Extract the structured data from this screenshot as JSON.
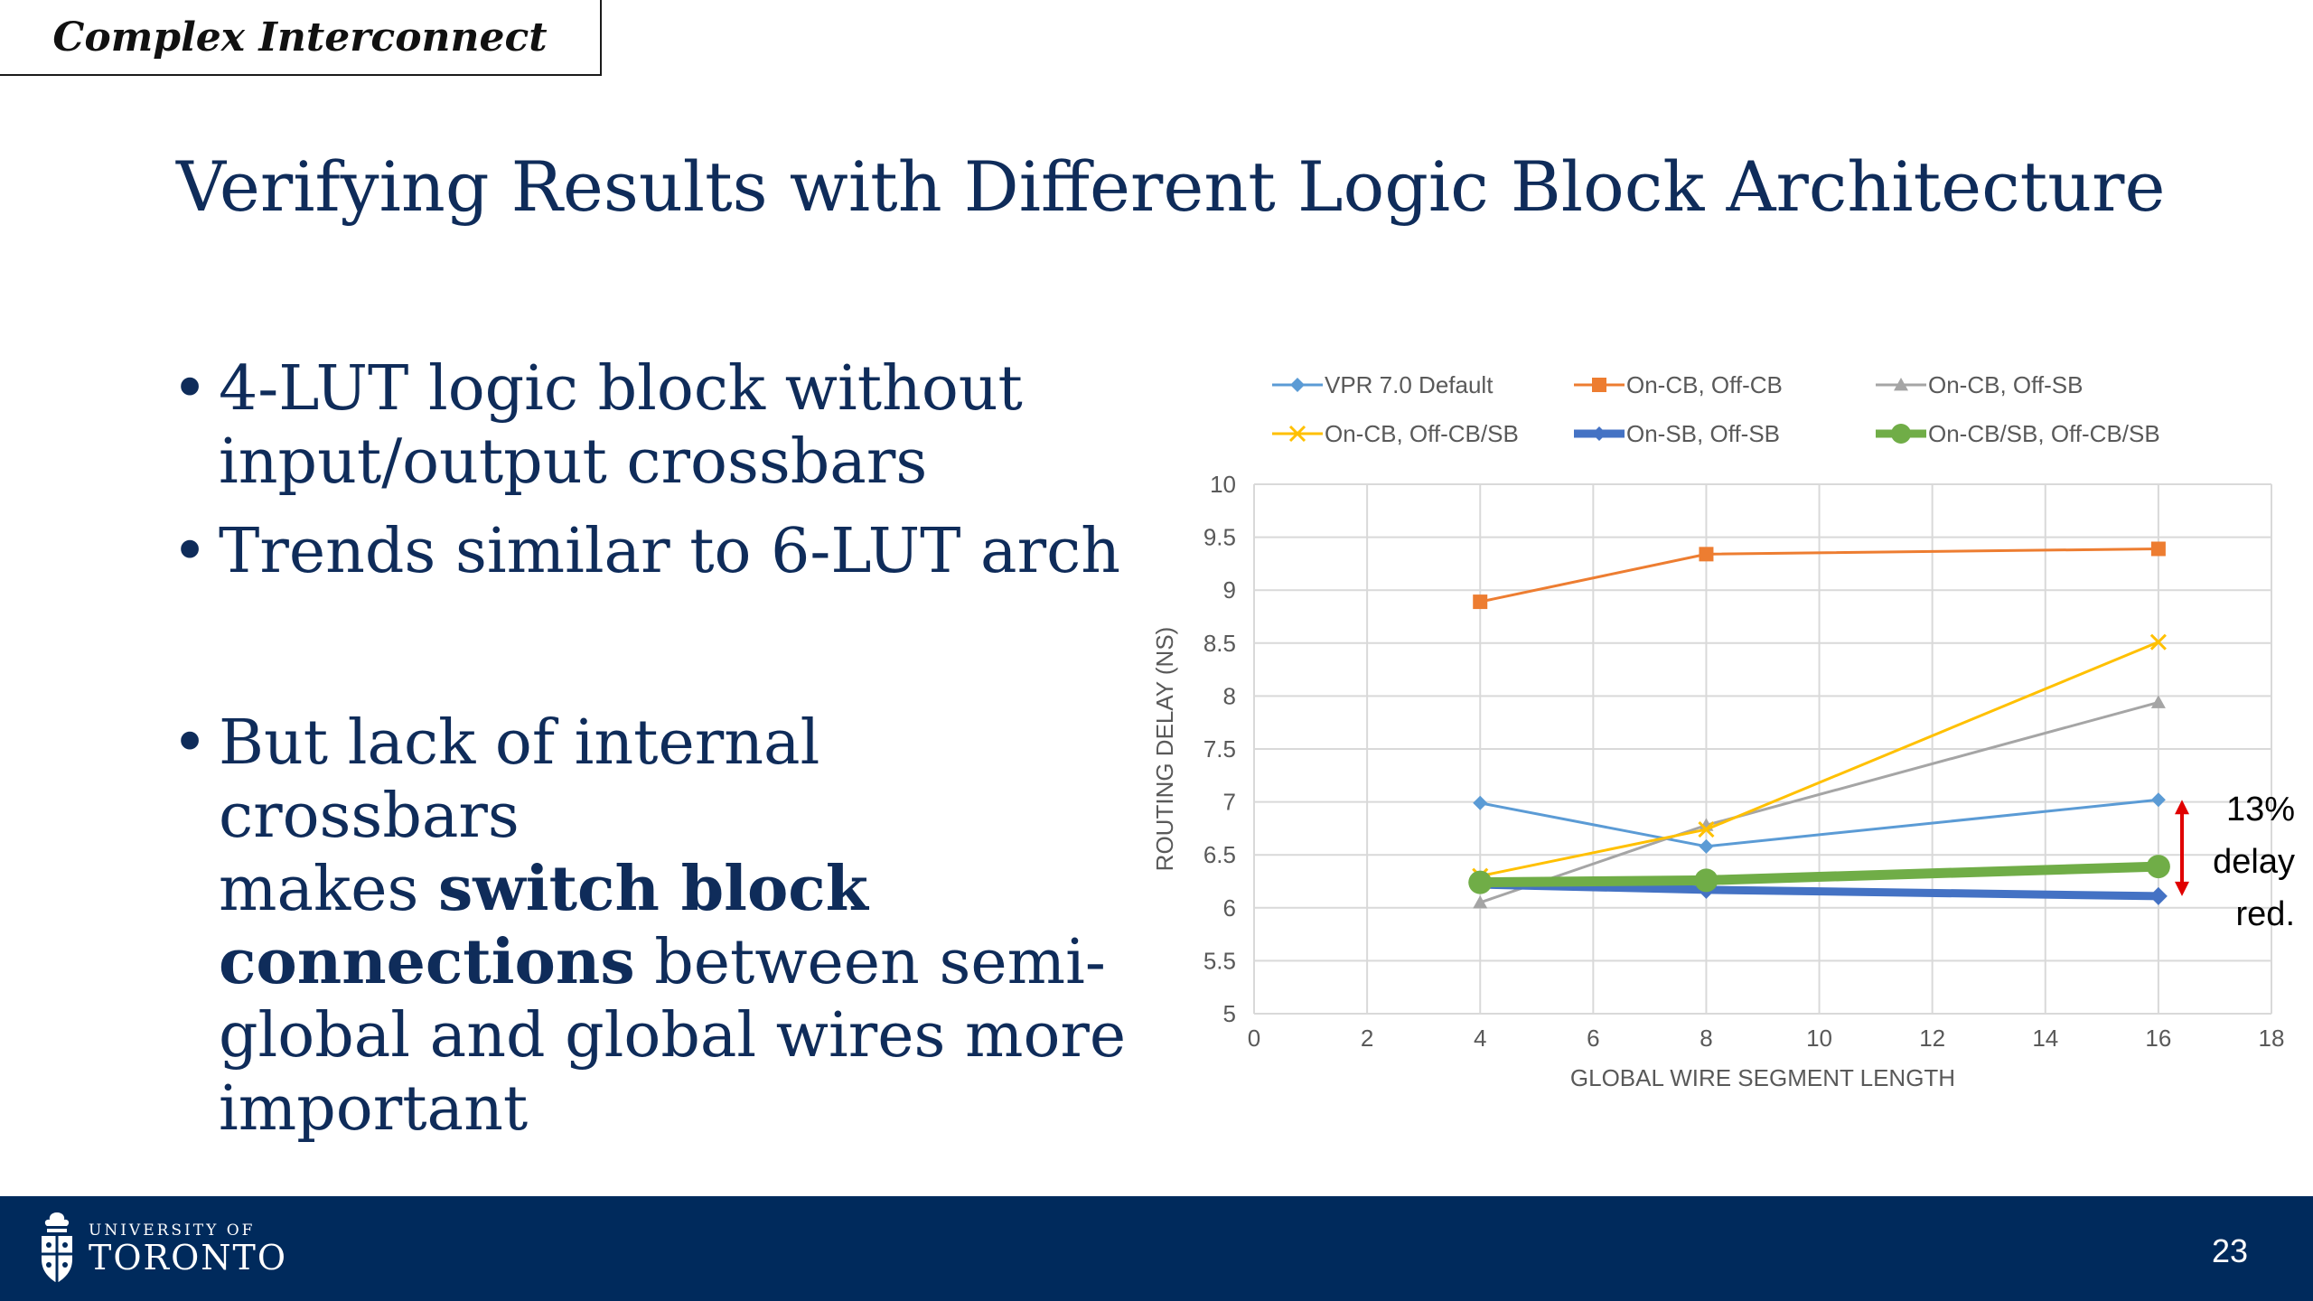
{
  "tag": "Complex Interconnect",
  "title": "Verifying Results with Different Logic Block Architecture",
  "bullets": {
    "b1_line1": "4-LUT logic block without",
    "b1_line2": "input/output crossbars",
    "b2": "Trends similar to 6-LUT arch",
    "b3_line1": "But lack of internal crossbars",
    "b3_line2_pre": "makes ",
    "b3_line2_bold": "switch block",
    "b3_line3_bold": "connections",
    "b3_line3_post": " between semi-",
    "b3_line4": "global and global wires more",
    "b3_line5": "important",
    "bullet_char": "•"
  },
  "chart_data": {
    "type": "line",
    "xlabel": "GLOBAL WIRE SEGMENT LENGTH",
    "ylabel": "ROUTING DELAY (NS)",
    "xlim": [
      0,
      18
    ],
    "ylim": [
      5,
      10
    ],
    "xticks": [
      0,
      2,
      4,
      6,
      8,
      10,
      12,
      14,
      16,
      18
    ],
    "yticks": [
      5,
      5.5,
      6,
      6.5,
      7,
      7.5,
      8,
      8.5,
      9,
      9.5,
      10
    ],
    "grid": true,
    "legend_position": "top",
    "x": [
      4,
      8,
      16
    ],
    "series": [
      {
        "name": "VPR 7.0 Default",
        "values": [
          6.99,
          6.58,
          7.02
        ],
        "color": "#5b9bd5",
        "marker": "diamond",
        "width": 3
      },
      {
        "name": "On-CB, Off-CB",
        "values": [
          8.89,
          9.34,
          9.39
        ],
        "color": "#ed7d31",
        "marker": "square",
        "width": 3
      },
      {
        "name": "On-CB, Off-SB",
        "values": [
          6.05,
          6.78,
          7.94
        ],
        "color": "#a5a5a5",
        "marker": "triangle",
        "width": 3
      },
      {
        "name": "On-CB, Off-CB/SB",
        "values": [
          6.3,
          6.74,
          8.51
        ],
        "color": "#ffc000",
        "marker": "x",
        "width": 3
      },
      {
        "name": "On-SB, Off-SB",
        "values": [
          6.22,
          6.17,
          6.11
        ],
        "color": "#4472c4",
        "marker": "diamond",
        "width": 9
      },
      {
        "name": "On-CB/SB, Off-CB/SB",
        "values": [
          6.24,
          6.26,
          6.39
        ],
        "color": "#70ad47",
        "marker": "circle",
        "width": 11
      }
    ],
    "annotation": {
      "lines": [
        "13%",
        "delay",
        "red."
      ],
      "arrow_color": "#e00000"
    }
  },
  "footer": {
    "uni_top": "UNIVERSITY OF",
    "uni_main": "TORONTO",
    "page": "23"
  }
}
